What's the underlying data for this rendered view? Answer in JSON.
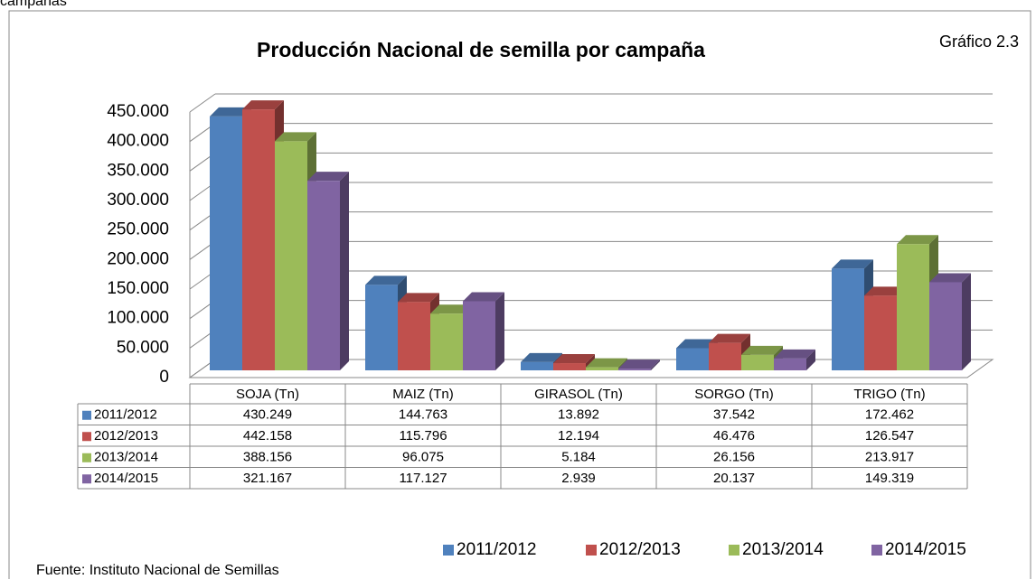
{
  "caption": "campañas",
  "chart_data": {
    "type": "bar3d",
    "title": "Producción Nacional de semilla por campaña",
    "annotation": "Gráfico 2.3",
    "source": "Fuente: Instituto Nacional de Semillas",
    "categories": [
      "SOJA (Tn)",
      "MAIZ (Tn)",
      "GIRASOL (Tn)",
      "SORGO (Tn)",
      "TRIGO (Tn)"
    ],
    "series": [
      {
        "name": "2011/2012",
        "color": "#4f81bd",
        "values": [
          430249,
          144763,
          13892,
          37542,
          172462
        ],
        "value_labels": [
          "430.249",
          "144.763",
          "13.892",
          "37.542",
          "172.462"
        ]
      },
      {
        "name": "2012/2013",
        "color": "#c0504d",
        "values": [
          442158,
          115796,
          12194,
          46476,
          126547
        ],
        "value_labels": [
          "442.158",
          "115.796",
          "12.194",
          "46.476",
          "126.547"
        ]
      },
      {
        "name": "2013/2014",
        "color": "#9bbb59",
        "values": [
          388156,
          96075,
          5184,
          26156,
          213917
        ],
        "value_labels": [
          "388.156",
          "96.075",
          "5.184",
          "26.156",
          "213.917"
        ]
      },
      {
        "name": "2014/2015",
        "color": "#8064a2",
        "values": [
          321167,
          117127,
          2939,
          20137,
          149319
        ],
        "value_labels": [
          "321.167",
          "117.127",
          "2.939",
          "20.137",
          "149.319"
        ]
      }
    ],
    "ylim": [
      0,
      450000
    ],
    "yticks": [
      0,
      {
        "value": 50000,
        "label": "50.000"
      },
      {
        "value": 100000,
        "label": "100.000"
      },
      {
        "value": 150000,
        "label": "150.000"
      },
      {
        "value": 200000,
        "label": "200.000"
      },
      {
        "value": 250000,
        "label": "250.000"
      },
      {
        "value": 300000,
        "label": "300.000"
      },
      {
        "value": 350000,
        "label": "350.000"
      },
      {
        "value": 400000,
        "label": "400.000"
      },
      {
        "value": 450000,
        "label": "450.000"
      }
    ],
    "grid": true,
    "legend": "bottom"
  }
}
